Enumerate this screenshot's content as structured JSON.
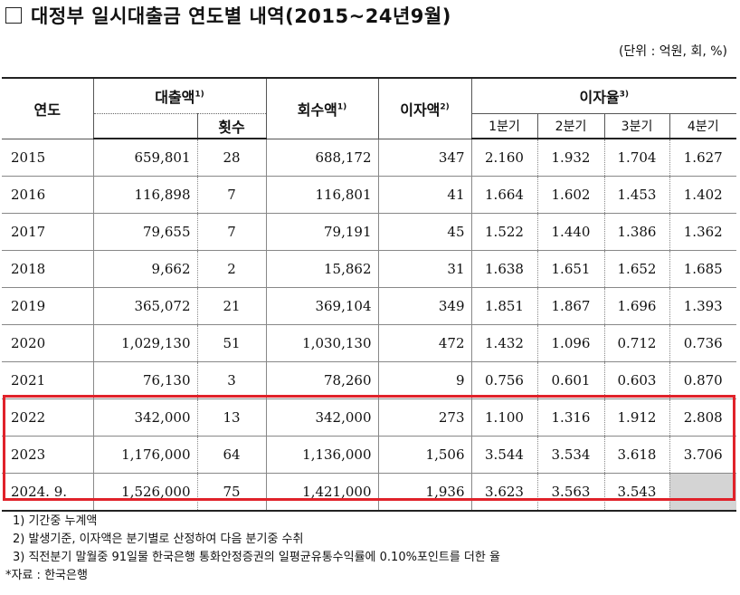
{
  "title": "대정부 일시대출금 연도별 내역(2015~24년9월)",
  "unit": "(단위 : 억원, 회, %)",
  "headers": {
    "year": "연도",
    "loan": "대출액",
    "loan_sup": "1)",
    "count": "횟수",
    "repay": "회수액",
    "repay_sup": "1)",
    "interest": "이자액",
    "interest_sup": "2)",
    "rate": "이자율",
    "rate_sup": "3)",
    "q1": "1분기",
    "q2": "2분기",
    "q3": "3분기",
    "q4": "4분기"
  },
  "rows": [
    {
      "year": "2015",
      "loan": "659,801",
      "count": "28",
      "repay": "688,172",
      "interest": "347",
      "q1": "2.160",
      "q2": "1.932",
      "q3": "1.704",
      "q4": "1.627"
    },
    {
      "year": "2016",
      "loan": "116,898",
      "count": "7",
      "repay": "116,801",
      "interest": "41",
      "q1": "1.664",
      "q2": "1.602",
      "q3": "1.453",
      "q4": "1.402"
    },
    {
      "year": "2017",
      "loan": "79,655",
      "count": "7",
      "repay": "79,191",
      "interest": "45",
      "q1": "1.522",
      "q2": "1.440",
      "q3": "1.386",
      "q4": "1.362"
    },
    {
      "year": "2018",
      "loan": "9,662",
      "count": "2",
      "repay": "15,862",
      "interest": "31",
      "q1": "1.638",
      "q2": "1.651",
      "q3": "1.652",
      "q4": "1.685"
    },
    {
      "year": "2019",
      "loan": "365,072",
      "count": "21",
      "repay": "369,104",
      "interest": "349",
      "q1": "1.851",
      "q2": "1.867",
      "q3": "1.696",
      "q4": "1.393"
    },
    {
      "year": "2020",
      "loan": "1,029,130",
      "count": "51",
      "repay": "1,030,130",
      "interest": "472",
      "q1": "1.432",
      "q2": "1.096",
      "q3": "0.712",
      "q4": "0.736"
    },
    {
      "year": "2021",
      "loan": "76,130",
      "count": "3",
      "repay": "78,260",
      "interest": "9",
      "q1": "0.756",
      "q2": "0.601",
      "q3": "0.603",
      "q4": "0.870"
    },
    {
      "year": "2022",
      "loan": "342,000",
      "count": "13",
      "repay": "342,000",
      "interest": "273",
      "q1": "1.100",
      "q2": "1.316",
      "q3": "1.912",
      "q4": "2.808"
    },
    {
      "year": "2023",
      "loan": "1,176,000",
      "count": "64",
      "repay": "1,136,000",
      "interest": "1,506",
      "q1": "3.544",
      "q2": "3.534",
      "q3": "3.618",
      "q4": "3.706"
    },
    {
      "year": "2024. 9.",
      "loan": "1,526,000",
      "count": "75",
      "repay": "1,421,000",
      "interest": "1,936",
      "q1": "3.623",
      "q2": "3.563",
      "q3": "3.543",
      "q4": ""
    }
  ],
  "notes": [
    "1) 기간중 누계액",
    "2) 발생기준, 이자액은 분기별로 산정하여 다음 분기중 수취",
    "3) 직전분기 말월중 91일물 한국은행 통화안정증권의 일평균유통수익률에 0.10%포인트를 더한 율"
  ],
  "source": "*자료 : 한국은행",
  "highlight_color": "#e0222a"
}
